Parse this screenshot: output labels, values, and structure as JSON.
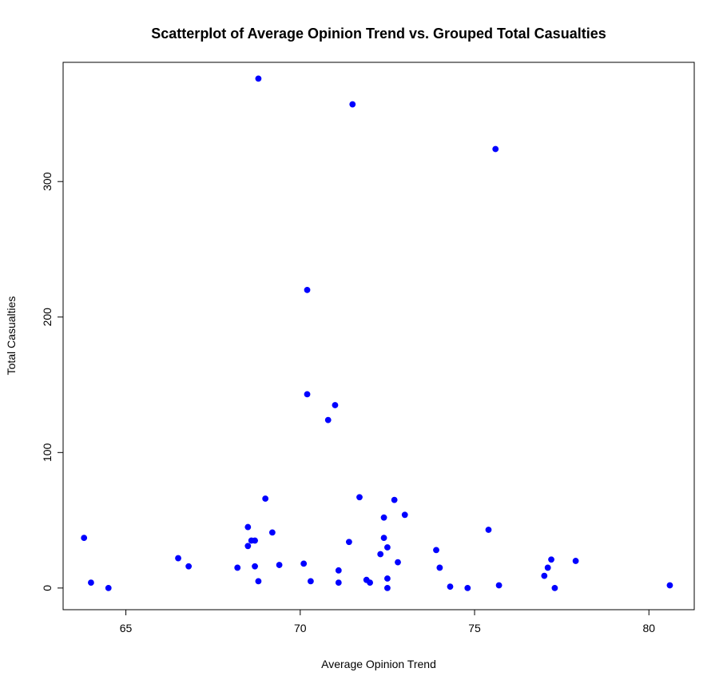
{
  "chart_data": {
    "type": "scatter",
    "title": "Scatterplot of Average Opinion Trend vs. Grouped Total Casualties",
    "xlabel": "Average Opinion Trend",
    "ylabel": "Total Casualties",
    "xlim": [
      63.2,
      81.3
    ],
    "ylim": [
      -16,
      388
    ],
    "x_ticks": [
      65,
      70,
      75,
      80
    ],
    "y_ticks": [
      0,
      100,
      200,
      300
    ],
    "grid": false,
    "legend": "none",
    "point_color": "#0000ff",
    "series": [
      {
        "points": [
          {
            "x": 63.8,
            "y": 37
          },
          {
            "x": 64.0,
            "y": 4
          },
          {
            "x": 64.5,
            "y": 0
          },
          {
            "x": 66.5,
            "y": 22
          },
          {
            "x": 66.8,
            "y": 16
          },
          {
            "x": 68.2,
            "y": 15
          },
          {
            "x": 68.5,
            "y": 45
          },
          {
            "x": 68.5,
            "y": 31
          },
          {
            "x": 68.6,
            "y": 35
          },
          {
            "x": 68.7,
            "y": 35
          },
          {
            "x": 68.7,
            "y": 16
          },
          {
            "x": 68.8,
            "y": 376
          },
          {
            "x": 68.8,
            "y": 5
          },
          {
            "x": 69.0,
            "y": 66
          },
          {
            "x": 69.2,
            "y": 41
          },
          {
            "x": 69.4,
            "y": 17
          },
          {
            "x": 70.1,
            "y": 18
          },
          {
            "x": 70.2,
            "y": 220
          },
          {
            "x": 70.2,
            "y": 143
          },
          {
            "x": 70.3,
            "y": 5
          },
          {
            "x": 70.8,
            "y": 124
          },
          {
            "x": 71.0,
            "y": 135
          },
          {
            "x": 71.1,
            "y": 13
          },
          {
            "x": 71.1,
            "y": 4
          },
          {
            "x": 71.4,
            "y": 34
          },
          {
            "x": 71.5,
            "y": 357
          },
          {
            "x": 71.7,
            "y": 67
          },
          {
            "x": 71.9,
            "y": 6
          },
          {
            "x": 72.0,
            "y": 4
          },
          {
            "x": 72.3,
            "y": 25
          },
          {
            "x": 72.4,
            "y": 52
          },
          {
            "x": 72.4,
            "y": 37
          },
          {
            "x": 72.5,
            "y": 30
          },
          {
            "x": 72.5,
            "y": 7
          },
          {
            "x": 72.5,
            "y": 0
          },
          {
            "x": 72.7,
            "y": 65
          },
          {
            "x": 72.8,
            "y": 19
          },
          {
            "x": 73.0,
            "y": 54
          },
          {
            "x": 73.9,
            "y": 28
          },
          {
            "x": 74.0,
            "y": 15
          },
          {
            "x": 74.3,
            "y": 1
          },
          {
            "x": 74.8,
            "y": 0
          },
          {
            "x": 75.4,
            "y": 43
          },
          {
            "x": 75.6,
            "y": 324
          },
          {
            "x": 75.7,
            "y": 2
          },
          {
            "x": 77.0,
            "y": 9
          },
          {
            "x": 77.1,
            "y": 15
          },
          {
            "x": 77.2,
            "y": 21
          },
          {
            "x": 77.3,
            "y": 0
          },
          {
            "x": 77.9,
            "y": 20
          },
          {
            "x": 80.6,
            "y": 2
          }
        ]
      }
    ]
  }
}
